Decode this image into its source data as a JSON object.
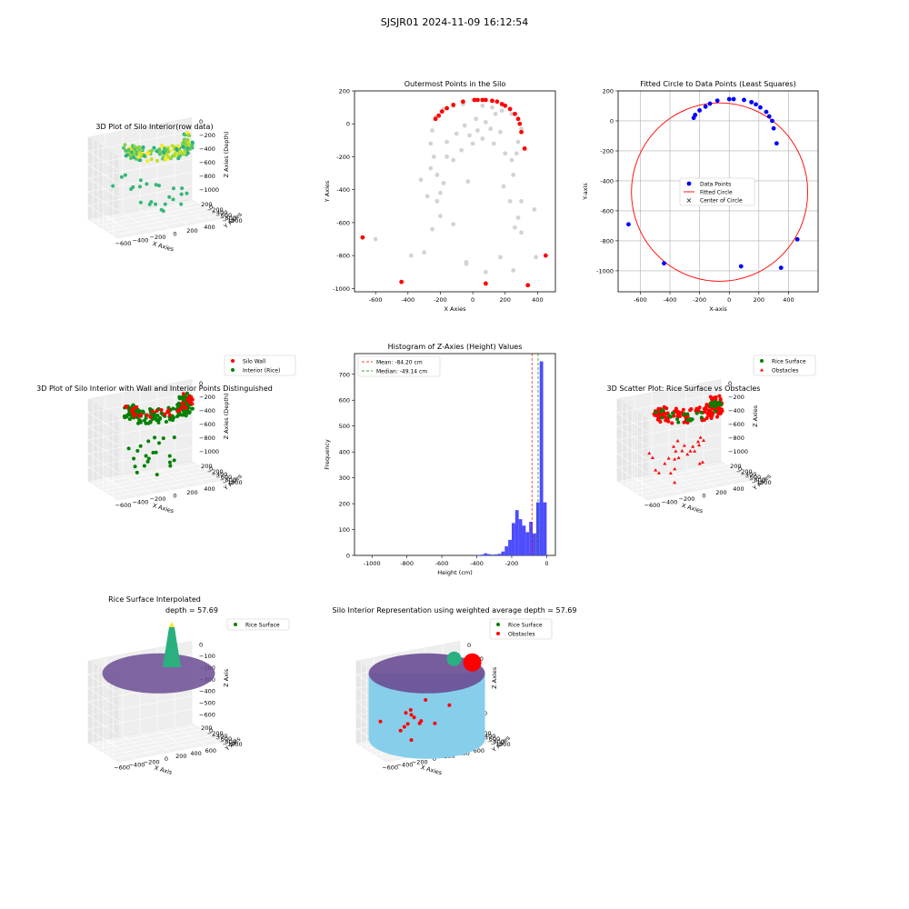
{
  "page": {
    "suptitle": "SJSJR01 2024-11-09 16:12:54"
  },
  "colors": {
    "wall": "#ff0000",
    "rice": "#008000",
    "gray": "#d3d3d3",
    "blue": "#0000ff",
    "hist": "#4d4dff",
    "silo": "#87ceeb",
    "surface": "#6a4c93"
  },
  "chart_data": [
    {
      "id": "p1",
      "type": "scatter3d",
      "title": "3D Plot of Silo Interior(row data)",
      "xlabel": "X Axies",
      "ylabel": "Y Axies",
      "zlabel": "Z Axies (Depth)",
      "x_ticks": [
        "−600",
        "−400",
        "−200",
        "0",
        "200",
        "400"
      ],
      "y_ticks": [
        "200",
        "0",
        "−200",
        "−400",
        "−600",
        "−800",
        "−1000"
      ],
      "z_ticks": [
        "0",
        "−200",
        "−400",
        "−600",
        "−800",
        "−1000"
      ],
      "colormap": "viridis (by depth)"
    },
    {
      "id": "p2",
      "type": "scatter",
      "title": "Outermost Points in the Silo",
      "xlabel": "X Axies",
      "ylabel": "Y Axies",
      "xlim": [
        -730,
        510
      ],
      "ylim": [
        -1020,
        200
      ],
      "x_ticks": [
        -600,
        -400,
        -200,
        0,
        200,
        400
      ],
      "y_ticks": [
        200,
        0,
        -200,
        -400,
        -600,
        -800,
        -1000
      ],
      "series": [
        {
          "role": "all",
          "color": "#d3d3d3",
          "points": [
            [
              -600,
              -700
            ],
            [
              -380,
              -800
            ],
            [
              -300,
              -780
            ],
            [
              -250,
              -640
            ],
            [
              -220,
              -470
            ],
            [
              -200,
              -560
            ],
            [
              -120,
              -610
            ],
            [
              -180,
              -360
            ],
            [
              -40,
              -840
            ],
            [
              -40,
              -850
            ],
            [
              -30,
              -350
            ],
            [
              80,
              -900
            ],
            [
              80,
              -970
            ],
            [
              170,
              -810
            ],
            [
              190,
              -380
            ],
            [
              230,
              -470
            ],
            [
              260,
              -630
            ],
            [
              280,
              -570
            ],
            [
              300,
              -660
            ],
            [
              300,
              -470
            ],
            [
              380,
              -520
            ],
            [
              390,
              -810
            ],
            [
              250,
              -890
            ],
            [
              -320,
              -340
            ],
            [
              -280,
              -440
            ],
            [
              -260,
              -270
            ],
            [
              -240,
              -200
            ],
            [
              -260,
              -120
            ],
            [
              -250,
              -40
            ],
            [
              -230,
              40
            ],
            [
              -160,
              -200
            ],
            [
              -120,
              -220
            ],
            [
              -70,
              -160
            ],
            [
              0,
              -120
            ],
            [
              60,
              -90
            ],
            [
              110,
              -30
            ],
            [
              170,
              -50
            ],
            [
              200,
              -180
            ],
            [
              240,
              -220
            ],
            [
              250,
              -310
            ],
            [
              270,
              -180
            ],
            [
              280,
              -110
            ],
            [
              300,
              -30
            ],
            [
              -220,
              -310
            ],
            [
              -200,
              -420
            ],
            [
              -160,
              -110
            ],
            [
              -100,
              -60
            ],
            [
              -50,
              -10
            ],
            [
              20,
              30
            ],
            [
              80,
              10
            ],
            [
              140,
              60
            ],
            [
              -180,
              90
            ],
            [
              -120,
              110
            ],
            [
              -60,
              120
            ],
            [
              60,
              110
            ],
            [
              120,
              100
            ],
            [
              180,
              80
            ],
            [
              240,
              60
            ],
            [
              -20,
              -70
            ],
            [
              30,
              -40
            ],
            [
              130,
              -120
            ]
          ]
        },
        {
          "role": "outermost",
          "color": "#ff0000",
          "points": [
            [
              -680,
              -690
            ],
            [
              -440,
              -960
            ],
            [
              80,
              -970
            ],
            [
              340,
              -980
            ],
            [
              450,
              -800
            ],
            [
              320,
              -150
            ],
            [
              300,
              -50
            ],
            [
              290,
              0
            ],
            [
              280,
              30
            ],
            [
              260,
              60
            ],
            [
              230,
              90
            ],
            [
              200,
              110
            ],
            [
              180,
              120
            ],
            [
              150,
              135
            ],
            [
              120,
              140
            ],
            [
              80,
              145
            ],
            [
              60,
              145
            ],
            [
              30,
              145
            ],
            [
              10,
              145
            ],
            [
              -60,
              135
            ],
            [
              -120,
              115
            ],
            [
              -160,
              95
            ],
            [
              -190,
              75
            ],
            [
              -210,
              50
            ],
            [
              -230,
              30
            ]
          ]
        }
      ]
    },
    {
      "id": "p3",
      "type": "scatter",
      "title": "Fitted Circle to Data Points (Least Squares)",
      "xlabel": "X-axis",
      "ylabel": "Y-axis",
      "xlim": [
        -750,
        600
      ],
      "ylim": [
        -1140,
        200
      ],
      "x_ticks": [
        -600,
        -400,
        -200,
        0,
        200,
        400
      ],
      "y_ticks": [
        200,
        0,
        -200,
        -400,
        -600,
        -800,
        -1000
      ],
      "grid": true,
      "legend": "center",
      "legend_entries": [
        "Data Points",
        "Fitted Circle",
        "Center of Circle"
      ],
      "circle": {
        "cx": -65,
        "cy": -475,
        "r": 595
      },
      "series": [
        {
          "role": "data",
          "color": "#0000ff",
          "points": [
            [
              -680,
              -690
            ],
            [
              -440,
              -950
            ],
            [
              80,
              -970
            ],
            [
              350,
              -980
            ],
            [
              460,
              -790
            ],
            [
              320,
              -150
            ],
            [
              300,
              -50
            ],
            [
              290,
              0
            ],
            [
              270,
              30
            ],
            [
              250,
              60
            ],
            [
              210,
              90
            ],
            [
              180,
              110
            ],
            [
              150,
              125
            ],
            [
              100,
              140
            ],
            [
              30,
              145
            ],
            [
              0,
              145
            ],
            [
              -80,
              135
            ],
            [
              -130,
              115
            ],
            [
              -160,
              95
            ],
            [
              -200,
              70
            ],
            [
              -230,
              40
            ],
            [
              -240,
              20
            ]
          ]
        }
      ]
    },
    {
      "id": "p4",
      "type": "scatter3d",
      "title": "3D Plot of Silo Interior with Wall and Interior Points Distinguished",
      "xlabel": "X Axies",
      "ylabel": "Y Axies",
      "zlabel": "Z Axies (Depth)",
      "x_ticks": [
        "−600",
        "−400",
        "−200",
        "0",
        "200",
        "400"
      ],
      "y_ticks": [
        "200",
        "0",
        "−200",
        "−400",
        "−600",
        "−800",
        "−1000"
      ],
      "z_ticks": [
        "0",
        "−200",
        "−400",
        "−600",
        "−800",
        "−1000"
      ],
      "legend_entries": [
        "Silo Wall",
        "Interior (Rice)"
      ]
    },
    {
      "id": "p5",
      "type": "bar",
      "title": "Histogram of Z-Axies (Height) Values",
      "xlabel": "Height (cm)",
      "ylabel": "Frequency",
      "xlim": [
        -1100,
        50
      ],
      "ylim": [
        0,
        780
      ],
      "x_ticks": [
        -1000,
        -800,
        -600,
        -400,
        -200,
        0
      ],
      "y_ticks": [
        0,
        100,
        200,
        300,
        400,
        500,
        600,
        700
      ],
      "bin_width": 20,
      "bins": [
        [
          -400,
          2
        ],
        [
          -380,
          3
        ],
        [
          -360,
          8
        ],
        [
          -340,
          5
        ],
        [
          -320,
          3
        ],
        [
          -300,
          4
        ],
        [
          -280,
          6
        ],
        [
          -260,
          15
        ],
        [
          -240,
          35
        ],
        [
          -220,
          60
        ],
        [
          -200,
          125
        ],
        [
          -180,
          175
        ],
        [
          -160,
          140
        ],
        [
          -140,
          115
        ],
        [
          -120,
          90
        ],
        [
          -100,
          130
        ],
        [
          -80,
          85
        ],
        [
          -60,
          205
        ],
        [
          -40,
          750
        ],
        [
          -20,
          205
        ]
      ],
      "mean": -84.2,
      "median": -49.14,
      "legend_entries": [
        "Mean: -84.20 cm",
        "Median: -49.14 cm"
      ]
    },
    {
      "id": "p6",
      "type": "scatter3d",
      "title": "3D Scatter Plot: Rice Surface vs Obstacles",
      "xlabel": "X Axies",
      "ylabel": "Y Axies",
      "zlabel": "Z Axies",
      "x_ticks": [
        "−600",
        "−400",
        "−200",
        "0",
        "200",
        "400"
      ],
      "y_ticks": [
        "200",
        "0",
        "−200",
        "−400",
        "−600",
        "−800",
        "−1000"
      ],
      "z_ticks": [
        "0",
        "−200",
        "−400",
        "−600",
        "−800",
        "−1000"
      ],
      "legend_entries": [
        "Rice Surface",
        "Obstacles"
      ]
    },
    {
      "id": "p7",
      "type": "surface3d",
      "title": "Rice Surface Interpolated",
      "subtitle": "depth = 57.69",
      "xlabel": "X Axis",
      "ylabel": "Y Axis",
      "zlabel": "Z Axis",
      "x_ticks": [
        "−600",
        "−400",
        "−200",
        "0",
        "200",
        "400",
        "600"
      ],
      "y_ticks": [
        "200",
        "0",
        "−200",
        "−400",
        "−600",
        "−800",
        "−1000"
      ],
      "z_ticks": [
        "0",
        "−100",
        "−200",
        "−300",
        "−400",
        "−500",
        "−600"
      ],
      "legend_entries": [
        "Rice Surface"
      ]
    },
    {
      "id": "p8",
      "type": "surface3d",
      "title": "Silo Interior Representation using weighted average depth = 57.69",
      "xlabel": "X Axies",
      "ylabel": "Y Axies",
      "zlabel": "Z Axies",
      "x_ticks": [
        "−600",
        "−400",
        "−200",
        "0",
        "200",
        "400",
        "600"
      ],
      "y_ticks": [
        "200",
        "0",
        "−200",
        "−400",
        "−600",
        "−800",
        "−1000"
      ],
      "z_ticks": [
        "0",
        "−200",
        "−400",
        "−600",
        "−800",
        "−1000"
      ],
      "legend_entries": [
        "Rice Surface",
        "Obstacles"
      ]
    }
  ]
}
